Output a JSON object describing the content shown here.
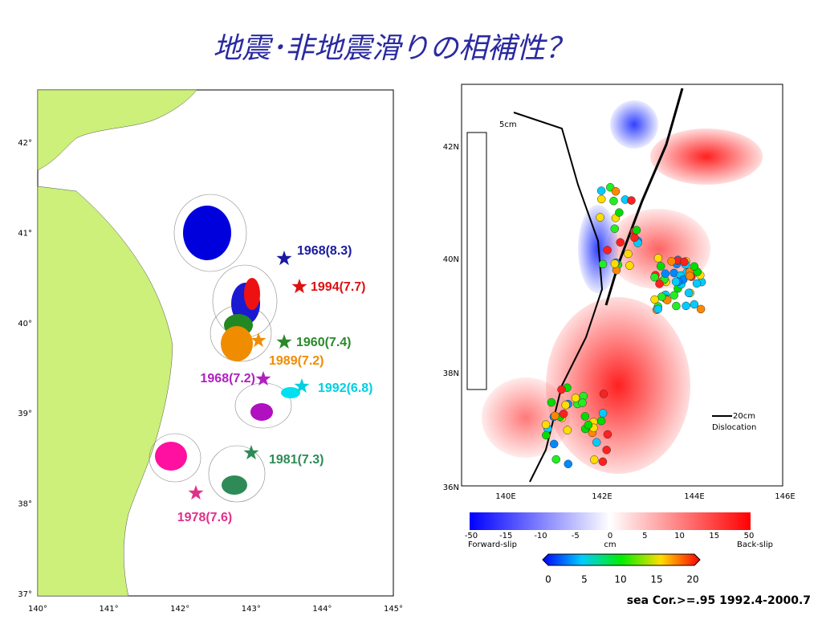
{
  "title": "地震･非地震滑りの相補性？",
  "left_map": {
    "lat_labels": [
      "42°",
      "41°",
      "40°",
      "39°",
      "38°",
      "37°"
    ],
    "lon_labels": [
      "140°",
      "141°",
      "142°",
      "143°",
      "144°",
      "145°"
    ],
    "events": [
      "1968(8.3)",
      "1994(7.7)",
      "1960(7.4)",
      "1989(7.2)",
      "1968(7.2)",
      "1992(6.8)",
      "1981(7.3)",
      "1978(7.6)"
    ]
  },
  "right_map": {
    "lat_labels": [
      "42N",
      "40N",
      "38N",
      "36N"
    ],
    "lon_labels": [
      "140E",
      "142E",
      "144E",
      "146E"
    ],
    "scale_top": "5cm",
    "arrow_scale": "20cm",
    "arrow_label": "Dislocation"
  },
  "colorbar1": {
    "ticks": [
      "-50",
      "-15",
      "-10",
      "-5",
      "0",
      "5",
      "10",
      "15",
      "50"
    ],
    "left": "Forward-slip",
    "unit": "cm",
    "right": "Back-slip"
  },
  "colorbar2": {
    "ticks": [
      "0",
      "5",
      "10",
      "15",
      "20"
    ]
  },
  "footer": "sea Cor.>=.95 1992.4-2000.7"
}
